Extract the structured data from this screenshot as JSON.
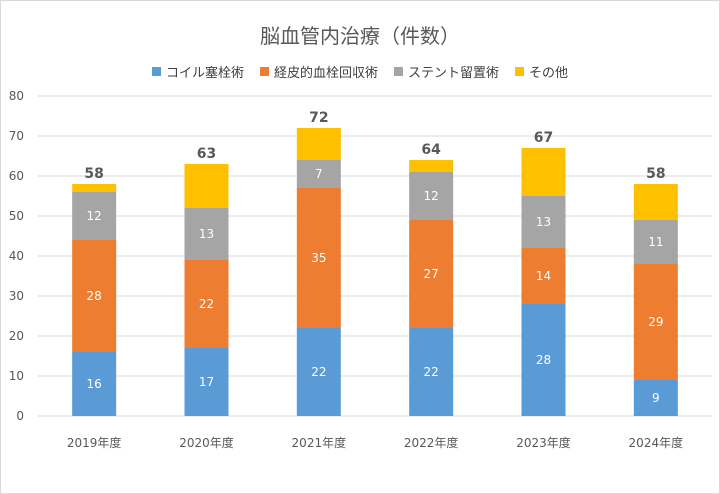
{
  "chart_data": {
    "type": "bar",
    "stacked": true,
    "title": "脳血管内治療（件数）",
    "categories": [
      "2019年度",
      "2020年度",
      "2021年度",
      "2022年度",
      "2023年度",
      "2024年度"
    ],
    "series": [
      {
        "name": "コイル塞栓術",
        "color": "#5b9bd5",
        "values": [
          16,
          17,
          22,
          22,
          28,
          9
        ]
      },
      {
        "name": "経皮的血栓回収術",
        "color": "#ed7d31",
        "values": [
          28,
          22,
          35,
          27,
          14,
          29
        ]
      },
      {
        "name": "ステント留置術",
        "color": "#a5a5a5",
        "values": [
          12,
          13,
          7,
          12,
          13,
          11
        ]
      },
      {
        "name": "その他",
        "color": "#ffc000",
        "values": [
          2,
          11,
          8,
          3,
          12,
          9
        ]
      }
    ],
    "segment_labels_shown": [
      true,
      true,
      true,
      false
    ],
    "totals": [
      58,
      63,
      72,
      64,
      67,
      58
    ],
    "ylim": [
      0,
      80
    ],
    "yticks": [
      0,
      10,
      20,
      30,
      40,
      50,
      60,
      70,
      80
    ],
    "grid": true,
    "legend_position": "top"
  }
}
